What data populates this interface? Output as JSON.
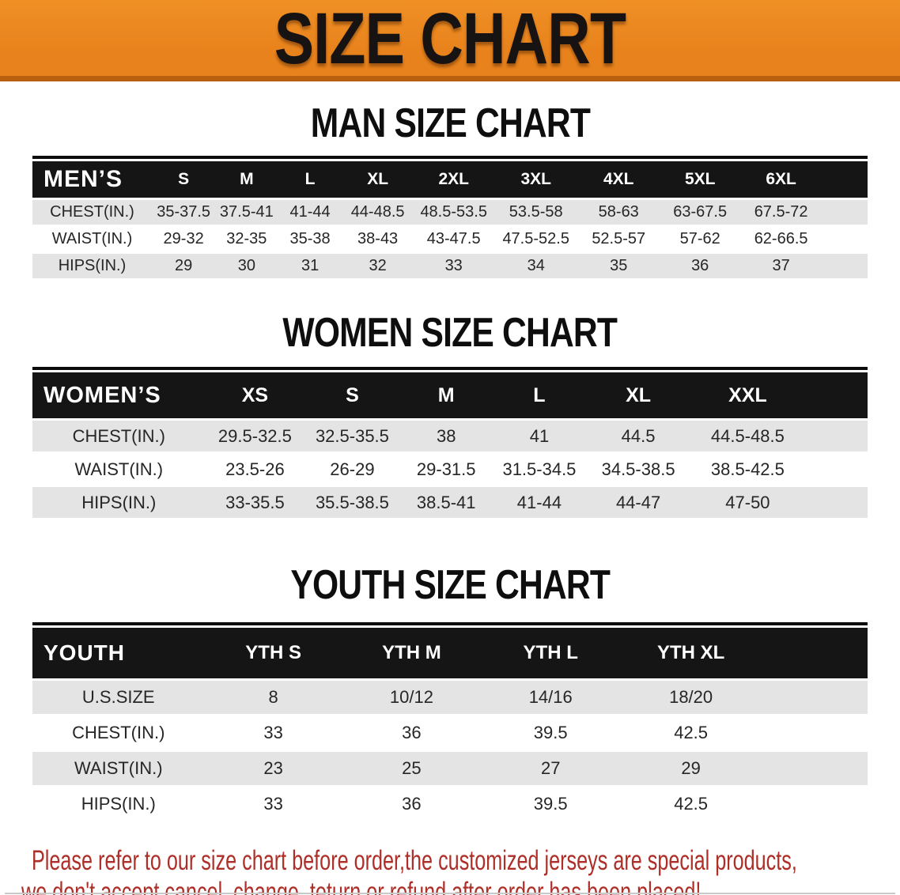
{
  "banner": {
    "title": "SIZE CHART"
  },
  "sections": [
    {
      "id": "mens",
      "heading": "MAN SIZE CHART",
      "table": {
        "header_label": "MEN’S",
        "sizes": [
          "S",
          "M",
          "L",
          "XL",
          "2XL",
          "3XL",
          "4XL",
          "5XL",
          "6XL"
        ],
        "rows": [
          {
            "label": "CHEST(IN.)",
            "values": [
              "35-37.5",
              "37.5-41",
              "41-44",
              "44-48.5",
              "48.5-53.5",
              "53.5-58",
              "58-63",
              "63-67.5",
              "67.5-72"
            ]
          },
          {
            "label": "WAIST(IN.)",
            "values": [
              "29-32",
              "32-35",
              "35-38",
              "38-43",
              "43-47.5",
              "47.5-52.5",
              "52.5-57",
              "57-62",
              "62-66.5"
            ]
          },
          {
            "label": "HIPS(IN.)",
            "values": [
              "29",
              "30",
              "31",
              "32",
              "33",
              "34",
              "35",
              "36",
              "37"
            ]
          }
        ]
      }
    },
    {
      "id": "womens",
      "heading": "WOMEN SIZE CHART",
      "table": {
        "header_label": "WOMEN’S",
        "sizes": [
          "XS",
          "S",
          "M",
          "L",
          "XL",
          "XXL"
        ],
        "rows": [
          {
            "label": "CHEST(IN.)",
            "values": [
              "29.5-32.5",
              "32.5-35.5",
              "38",
              "41",
              "44.5",
              "44.5-48.5"
            ]
          },
          {
            "label": "WAIST(IN.)",
            "values": [
              "23.5-26",
              "26-29",
              "29-31.5",
              "31.5-34.5",
              "34.5-38.5",
              "38.5-42.5"
            ]
          },
          {
            "label": "HIPS(IN.)",
            "values": [
              "33-35.5",
              "35.5-38.5",
              "38.5-41",
              "41-44",
              "44-47",
              "47-50"
            ]
          }
        ]
      }
    },
    {
      "id": "youth",
      "heading": "YOUTH SIZE CHART",
      "table": {
        "header_label": "YOUTH",
        "sizes": [
          "YTH S",
          "YTH M",
          "YTH L",
          "YTH XL"
        ],
        "rows": [
          {
            "label": "U.S.SIZE",
            "values": [
              "8",
              "10/12",
              "14/16",
              "18/20"
            ]
          },
          {
            "label": "CHEST(IN.)",
            "values": [
              "33",
              "36",
              "39.5",
              "42.5"
            ]
          },
          {
            "label": "WAIST(IN.)",
            "values": [
              "23",
              "25",
              "27",
              "29"
            ]
          },
          {
            "label": "HIPS(IN.)",
            "values": [
              "33",
              "36",
              "39.5",
              "42.5"
            ]
          }
        ]
      }
    }
  ],
  "footer": {
    "line1": "Please refer to our size chart before order,the customized jerseys are special products,",
    "line2": "we don't accept cancel, change, teturn or refund after order has been placed!"
  },
  "colors": {
    "banner_orange": "#E8821C",
    "banner_orange_light": "#EF9025",
    "banner_strip": "#B95F10",
    "header_black": "#151515",
    "row_gray": "#E4E4E4",
    "notice_red": "#AE2E28",
    "ink": "#171312"
  }
}
